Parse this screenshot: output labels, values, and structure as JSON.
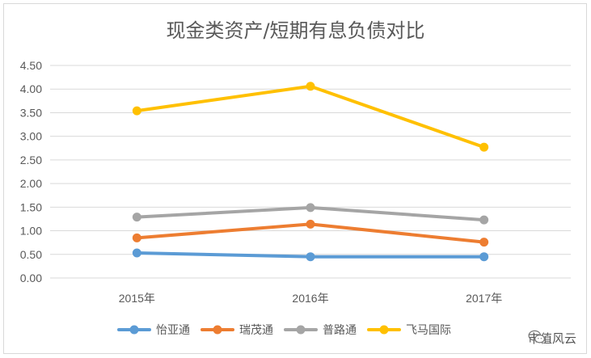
{
  "chart_data": {
    "type": "line",
    "title": "现金类资产/短期有息负债对比",
    "categories": [
      "2015年",
      "2016年",
      "2017年"
    ],
    "ylim": [
      0,
      4.5
    ],
    "yticks": [
      "0.00",
      "0.50",
      "1.00",
      "1.50",
      "2.00",
      "2.50",
      "3.00",
      "3.50",
      "4.00",
      "4.50"
    ],
    "grid": true,
    "legend_position": "bottom",
    "series": [
      {
        "name": "怡亚通",
        "color": "#5b9bd5",
        "values": [
          0.53,
          0.45,
          0.45
        ]
      },
      {
        "name": "瑞茂通",
        "color": "#ed7d31",
        "values": [
          0.85,
          1.14,
          0.76
        ]
      },
      {
        "name": "普路通",
        "color": "#a5a5a5",
        "values": [
          1.29,
          1.49,
          1.23
        ]
      },
      {
        "name": "飞马国际",
        "color": "#ffc000",
        "values": [
          3.54,
          4.06,
          2.77
        ]
      }
    ]
  },
  "watermark": {
    "text": "市值风云",
    "icon": "wechat-icon"
  }
}
